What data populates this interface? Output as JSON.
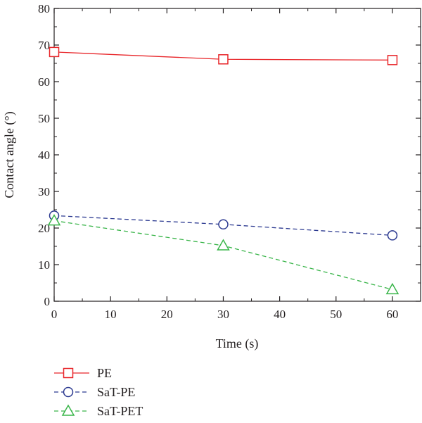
{
  "chart_data": {
    "type": "line",
    "xlabel": "Time (s)",
    "ylabel": "Contact angle (°)",
    "xlim": [
      0,
      65
    ],
    "ylim": [
      0,
      80
    ],
    "x_ticks": [
      "0",
      "10",
      "20",
      "30",
      "40",
      "50",
      "60"
    ],
    "y_ticks": [
      "0",
      "10",
      "20",
      "30",
      "40",
      "50",
      "60",
      "70",
      "80"
    ],
    "grid": false,
    "legend_position": "bottom-left, below plot",
    "x": [
      0,
      30,
      60
    ],
    "series": [
      {
        "name": "PE",
        "values": [
          68.1,
          66.1,
          65.9
        ],
        "color": "#e8262a",
        "marker": "square",
        "dash": "solid"
      },
      {
        "name": "SaT-PE",
        "values": [
          23.4,
          21.0,
          18.0
        ],
        "color": "#2b3990",
        "marker": "circle",
        "dash": "dashed"
      },
      {
        "name": "SaT-PET",
        "values": [
          22.0,
          15.2,
          3.2
        ],
        "color": "#3ab54a",
        "marker": "triangle",
        "dash": "dashed"
      }
    ]
  }
}
